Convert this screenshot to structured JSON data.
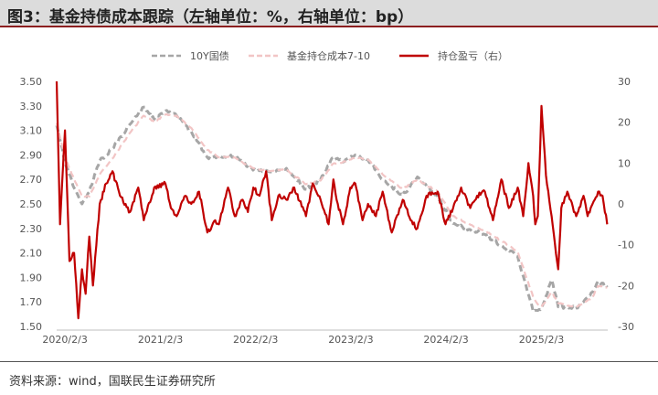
{
  "title": "图3：基金持债成本跟踪（左轴单位：%，右轴单位：bp）",
  "source": "资料来源：wind，国联民生证券研究所",
  "chart_data": {
    "type": "line",
    "series": [
      {
        "name": "10Y国债",
        "axis": "left",
        "color": "#a6a6a6",
        "style": "dashed",
        "x": [
          "2020-01-02",
          "2020-02-03",
          "2020-03-09",
          "2020-04-08",
          "2020-05-06",
          "2020-06-15",
          "2020-08-03",
          "2020-10-09",
          "2020-12-01",
          "2021-01-10",
          "2021-02-22",
          "2021-04-06",
          "2021-06-01",
          "2021-08-02",
          "2021-09-15",
          "2021-11-15",
          "2022-01-04",
          "2022-02-18",
          "2022-04-06",
          "2022-06-01",
          "2022-08-15",
          "2022-10-10",
          "2022-11-28",
          "2023-01-04",
          "2023-02-20",
          "2023-04-10",
          "2023-06-05",
          "2023-08-21",
          "2023-10-16",
          "2024-01-02",
          "2024-03-01",
          "2024-05-06",
          "2024-07-01",
          "2024-09-02",
          "2024-11-04",
          "2025-01-02",
          "2025-01-20",
          "2025-02-03",
          "2025-03-14",
          "2025-04-08",
          "2025-05-13",
          "2025-06-16",
          "2025-07-14",
          "2025-08-18",
          "2025-09-08",
          "2025-10-13"
        ],
        "y": [
          3.14,
          2.84,
          2.63,
          2.5,
          2.6,
          2.85,
          2.95,
          3.15,
          3.29,
          3.19,
          3.26,
          3.22,
          3.09,
          2.88,
          2.88,
          2.89,
          2.8,
          2.77,
          2.76,
          2.79,
          2.62,
          2.7,
          2.88,
          2.84,
          2.9,
          2.86,
          2.7,
          2.57,
          2.72,
          2.56,
          2.34,
          2.29,
          2.25,
          2.16,
          2.07,
          1.62,
          1.63,
          1.65,
          1.88,
          1.66,
          1.66,
          1.65,
          1.7,
          1.78,
          1.87,
          1.82
        ]
      },
      {
        "name": "基金持仓成本7-10",
        "axis": "left",
        "color": "#f2c5c5",
        "style": "dashed",
        "x": [
          "2020-01-02",
          "2020-02-03",
          "2020-03-09",
          "2020-04-08",
          "2020-05-06",
          "2020-06-15",
          "2020-08-03",
          "2020-10-09",
          "2020-12-01",
          "2021-01-10",
          "2021-02-22",
          "2021-04-06",
          "2021-06-01",
          "2021-08-02",
          "2021-09-15",
          "2021-11-15",
          "2022-01-04",
          "2022-02-18",
          "2022-04-06",
          "2022-06-01",
          "2022-08-15",
          "2022-10-10",
          "2022-11-28",
          "2023-01-04",
          "2023-02-20",
          "2023-04-10",
          "2023-06-05",
          "2023-08-21",
          "2023-10-16",
          "2024-01-02",
          "2024-03-01",
          "2024-05-06",
          "2024-07-01",
          "2024-09-02",
          "2024-11-04",
          "2025-01-02",
          "2025-01-20",
          "2025-02-03",
          "2025-03-14",
          "2025-04-08",
          "2025-05-13",
          "2025-06-16",
          "2025-07-14",
          "2025-08-18",
          "2025-09-08",
          "2025-10-13"
        ],
        "y": [
          3.16,
          2.88,
          2.7,
          2.56,
          2.56,
          2.74,
          2.87,
          3.08,
          3.22,
          3.17,
          3.23,
          3.22,
          3.12,
          2.94,
          2.88,
          2.88,
          2.81,
          2.78,
          2.77,
          2.78,
          2.66,
          2.69,
          2.83,
          2.84,
          2.88,
          2.86,
          2.74,
          2.62,
          2.7,
          2.6,
          2.4,
          2.33,
          2.28,
          2.2,
          2.11,
          1.74,
          1.68,
          1.66,
          1.78,
          1.69,
          1.67,
          1.66,
          1.69,
          1.74,
          1.83,
          1.82
        ]
      },
      {
        "name": "持仓盈亏（右）",
        "axis": "right",
        "color": "#c00000",
        "style": "solid",
        "x": [
          "2020-01-02",
          "2020-01-15",
          "2020-02-03",
          "2020-02-20",
          "2020-03-09",
          "2020-03-25",
          "2020-04-08",
          "2020-04-22",
          "2020-05-06",
          "2020-05-20",
          "2020-06-15",
          "2020-07-10",
          "2020-08-03",
          "2020-09-01",
          "2020-10-09",
          "2020-11-10",
          "2020-12-01",
          "2021-01-10",
          "2021-02-22",
          "2021-03-15",
          "2021-04-06",
          "2021-05-10",
          "2021-06-01",
          "2021-07-01",
          "2021-08-02",
          "2021-09-01",
          "2021-09-15",
          "2021-10-20",
          "2021-11-15",
          "2021-12-15",
          "2022-01-04",
          "2022-01-25",
          "2022-02-18",
          "2022-03-15",
          "2022-04-06",
          "2022-05-01",
          "2022-06-01",
          "2022-07-01",
          "2022-08-15",
          "2022-09-10",
          "2022-10-10",
          "2022-11-10",
          "2022-11-28",
          "2022-12-15",
          "2023-01-04",
          "2023-02-01",
          "2023-02-20",
          "2023-03-20",
          "2023-04-10",
          "2023-05-10",
          "2023-06-05",
          "2023-07-10",
          "2023-08-21",
          "2023-09-20",
          "2023-10-16",
          "2023-11-20",
          "2024-01-02",
          "2024-02-01",
          "2024-03-01",
          "2024-04-01",
          "2024-05-06",
          "2024-06-01",
          "2024-07-01",
          "2024-08-01",
          "2024-09-02",
          "2024-10-01",
          "2024-11-04",
          "2024-11-25",
          "2024-12-15",
          "2025-01-02",
          "2025-01-10",
          "2025-01-20",
          "2025-02-03",
          "2025-02-20",
          "2025-03-14",
          "2025-04-08",
          "2025-04-20",
          "2025-05-13",
          "2025-06-16",
          "2025-07-14",
          "2025-07-30",
          "2025-08-18",
          "2025-09-08",
          "2025-09-25",
          "2025-10-13"
        ],
        "y": [
          30,
          -5,
          18,
          -14,
          -12,
          -28,
          -16,
          -22,
          -8,
          -20,
          0,
          5,
          8,
          2,
          -2,
          4,
          -4,
          4,
          5,
          -1,
          -3,
          2,
          0,
          3,
          -7,
          -4,
          -5,
          4,
          -3,
          1,
          -2,
          4,
          2,
          8,
          -4,
          2,
          1,
          4,
          -3,
          5,
          1,
          -5,
          6,
          0,
          -5,
          4,
          5,
          -4,
          0,
          -3,
          3,
          -7,
          1,
          -4,
          -6,
          2,
          3,
          -5,
          -1,
          4,
          -1,
          2,
          3,
          -4,
          6,
          -1,
          4,
          -3,
          10,
          2,
          -5,
          -3,
          24,
          7,
          -3,
          -16,
          -1,
          3,
          -3,
          2,
          -3,
          0,
          3,
          2,
          -5
        ]
      }
    ],
    "xlabel": "",
    "ylabel_left": "",
    "ylabel_right": "",
    "x_range": [
      "2020-01-02",
      "2025-10-15"
    ],
    "x_ticks": [
      "2020/2/3",
      "2021/2/3",
      "2022/2/3",
      "2023/2/3",
      "2024/2/3",
      "2025/2/3"
    ],
    "ylim_left": [
      1.5,
      3.5
    ],
    "yticks_left": [
      "1.50",
      "1.70",
      "1.90",
      "2.10",
      "2.30",
      "2.50",
      "2.70",
      "2.90",
      "3.10",
      "3.30",
      "3.50"
    ],
    "ylim_right": [
      -30,
      30
    ],
    "yticks_right": [
      "-30",
      "-20",
      "-10",
      "0",
      "10",
      "20",
      "30"
    ],
    "grid": false,
    "legend_position": "top-center"
  }
}
